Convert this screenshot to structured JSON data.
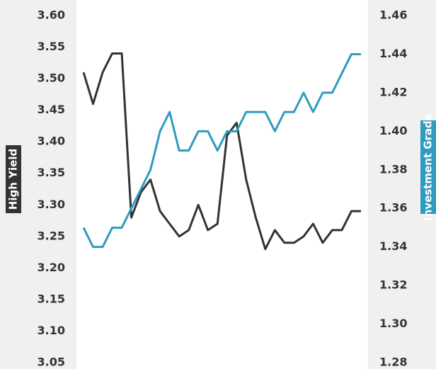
{
  "chart_data": {
    "type": "line",
    "ylabel": "High Yield",
    "y2label": "Investment Grade",
    "ylim": [
      3.05,
      3.6
    ],
    "yticks": [
      {
        "value": 3.6,
        "label": "3.60"
      },
      3.55,
      {
        "value": 3.5,
        "label": "3.50"
      },
      3.45,
      {
        "value": 3.4,
        "label": "3.40"
      },
      3.35,
      {
        "value": 3.3,
        "label": "3.30"
      },
      3.25,
      {
        "value": 3.2,
        "label": "3.20"
      },
      3.15,
      {
        "value": 3.1,
        "label": "3.10"
      },
      3.05
    ],
    "y2lim": [
      1.28,
      1.46
    ],
    "y2ticks": [
      1.46,
      1.44,
      1.42,
      {
        "value": 1.4,
        "label": "1.40"
      },
      1.38,
      1.36,
      1.34,
      1.32,
      {
        "value": 1.3,
        "label": "1.30"
      },
      1.28
    ],
    "grid": false,
    "series": [
      {
        "name": "High Yield",
        "color": "#333333",
        "axis": "y",
        "values": [
          3.51,
          3.46,
          3.51,
          3.54,
          3.54,
          3.28,
          3.32,
          3.34,
          3.29,
          3.27,
          3.25,
          3.26,
          3.3,
          3.26,
          3.27,
          3.41,
          3.43,
          3.34,
          3.28,
          3.23,
          3.26,
          3.24,
          3.24,
          3.25,
          3.27,
          3.24,
          3.26,
          3.26,
          3.29,
          3.29
        ]
      },
      {
        "name": "Investment Grade",
        "color": "#2e9bc1",
        "axis": "y2",
        "values": [
          1.35,
          1.34,
          1.34,
          1.35,
          1.35,
          1.36,
          1.37,
          1.38,
          1.4,
          1.41,
          1.39,
          1.39,
          1.4,
          1.4,
          1.39,
          1.4,
          1.4,
          1.41,
          1.41,
          1.41,
          1.4,
          1.41,
          1.41,
          1.42,
          1.41,
          1.42,
          1.42,
          1.43,
          1.44,
          1.44
        ]
      }
    ]
  }
}
